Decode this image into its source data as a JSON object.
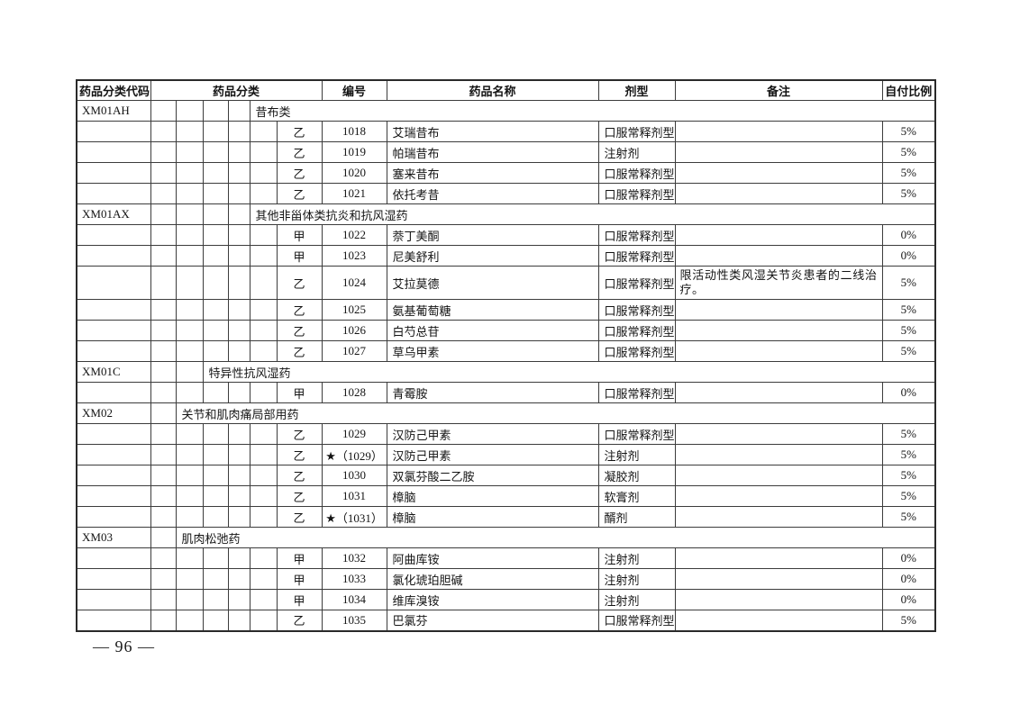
{
  "page": {
    "number_label": "— 96 —"
  },
  "table": {
    "headers": {
      "code": "药品分类代码",
      "classification": "药品分类",
      "number": "编号",
      "name": "药品名称",
      "form": "剂型",
      "remark": "备注",
      "ratio": "自付比例"
    },
    "rows": [
      {
        "type": "category",
        "code": "XM01AH",
        "depth": 4,
        "label": "昔布类"
      },
      {
        "type": "drug",
        "class": "乙",
        "number": "1018",
        "name": "艾瑞昔布",
        "form": "口服常释剂型",
        "remark": "",
        "ratio": "5%"
      },
      {
        "type": "drug",
        "class": "乙",
        "number": "1019",
        "name": "帕瑞昔布",
        "form": "注射剂",
        "remark": "",
        "ratio": "5%"
      },
      {
        "type": "drug",
        "class": "乙",
        "number": "1020",
        "name": "塞来昔布",
        "form": "口服常释剂型",
        "remark": "",
        "ratio": "5%"
      },
      {
        "type": "drug",
        "class": "乙",
        "number": "1021",
        "name": "依托考昔",
        "form": "口服常释剂型",
        "remark": "",
        "ratio": "5%"
      },
      {
        "type": "category",
        "code": "XM01AX",
        "depth": 4,
        "label": "其他非甾体类抗炎和抗风湿药"
      },
      {
        "type": "drug",
        "class": "甲",
        "number": "1022",
        "name": "萘丁美酮",
        "form": "口服常释剂型",
        "remark": "",
        "ratio": "0%"
      },
      {
        "type": "drug",
        "class": "甲",
        "number": "1023",
        "name": "尼美舒利",
        "form": "口服常释剂型",
        "remark": "",
        "ratio": "0%"
      },
      {
        "type": "drug",
        "class": "乙",
        "number": "1024",
        "name": "艾拉莫德",
        "form": "口服常释剂型",
        "remark": "限活动性类风湿关节炎患者的二线治疗。",
        "ratio": "5%"
      },
      {
        "type": "drug",
        "class": "乙",
        "number": "1025",
        "name": "氨基葡萄糖",
        "form": "口服常释剂型",
        "remark": "",
        "ratio": "5%"
      },
      {
        "type": "drug",
        "class": "乙",
        "number": "1026",
        "name": "白芍总苷",
        "form": "口服常释剂型",
        "remark": "",
        "ratio": "5%"
      },
      {
        "type": "drug",
        "class": "乙",
        "number": "1027",
        "name": "草乌甲素",
        "form": "口服常释剂型",
        "remark": "",
        "ratio": "5%"
      },
      {
        "type": "category",
        "code": "XM01C",
        "depth": 2,
        "label": "特异性抗风湿药"
      },
      {
        "type": "drug",
        "class": "甲",
        "number": "1028",
        "name": "青霉胺",
        "form": "口服常释剂型",
        "remark": "",
        "ratio": "0%"
      },
      {
        "type": "category",
        "code": "XM02",
        "depth": 1,
        "label": "关节和肌肉痛局部用药"
      },
      {
        "type": "drug",
        "class": "乙",
        "number": "1029",
        "name": "汉防己甲素",
        "form": "口服常释剂型",
        "remark": "",
        "ratio": "5%"
      },
      {
        "type": "drug",
        "class": "乙",
        "number": "★（1029）",
        "name": "汉防己甲素",
        "form": "注射剂",
        "remark": "",
        "ratio": "5%"
      },
      {
        "type": "drug",
        "class": "乙",
        "number": "1030",
        "name": "双氯芬酸二乙胺",
        "form": "凝胶剂",
        "remark": "",
        "ratio": "5%"
      },
      {
        "type": "drug",
        "class": "乙",
        "number": "1031",
        "name": "樟脑",
        "form": "软膏剂",
        "remark": "",
        "ratio": "5%"
      },
      {
        "type": "drug",
        "class": "乙",
        "number": "★（1031）",
        "name": "樟脑",
        "form": "醑剂",
        "remark": "",
        "ratio": "5%"
      },
      {
        "type": "category",
        "code": "XM03",
        "depth": 1,
        "label": "肌肉松弛药"
      },
      {
        "type": "drug",
        "class": "甲",
        "number": "1032",
        "name": "阿曲库铵",
        "form": "注射剂",
        "remark": "",
        "ratio": "0%"
      },
      {
        "type": "drug",
        "class": "甲",
        "number": "1033",
        "name": "氯化琥珀胆碱",
        "form": "注射剂",
        "remark": "",
        "ratio": "0%"
      },
      {
        "type": "drug",
        "class": "甲",
        "number": "1034",
        "name": "维库溴铵",
        "form": "注射剂",
        "remark": "",
        "ratio": "0%"
      },
      {
        "type": "drug",
        "class": "乙",
        "number": "1035",
        "name": "巴氯芬",
        "form": "口服常释剂型",
        "remark": "",
        "ratio": "5%"
      }
    ]
  }
}
